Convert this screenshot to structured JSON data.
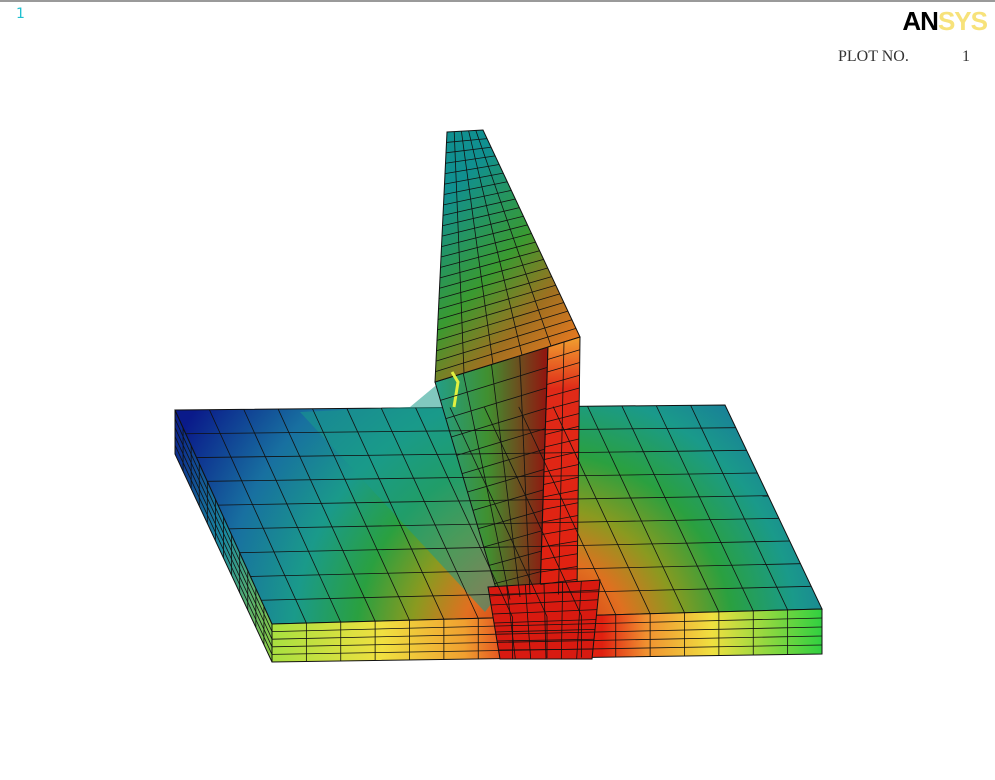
{
  "window": {
    "number": "1"
  },
  "logo": {
    "primary": "AN",
    "secondary": "SYS"
  },
  "plot": {
    "label": "PLOT NO.",
    "number": "1"
  }
}
